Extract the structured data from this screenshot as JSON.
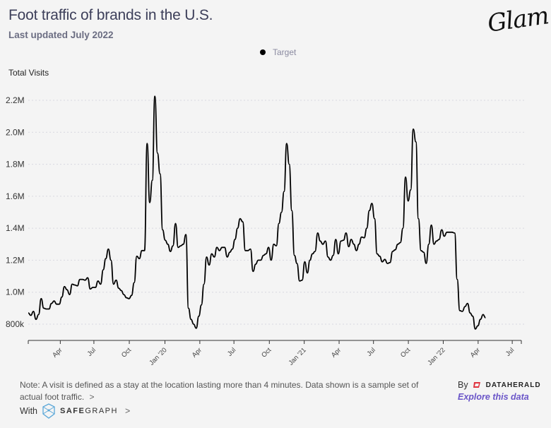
{
  "header": {
    "title": "Foot traffic of brands in the U.S.",
    "subtitle": "Last updated July 2022",
    "logo": "Glam"
  },
  "legend": [
    {
      "label": "Target",
      "color": "#000000"
    }
  ],
  "footer": {
    "note": "Note: A visit is defined as a stay at the location lasting more than 4 minutes. Data shown is a sample set of actual foot traffic.",
    "note_chevron": ">",
    "with_label": "With",
    "safegraph_bold": "SAFE",
    "safegraph_rest": "GRAPH",
    "safegraph_chevron": ">",
    "by_label": "By",
    "dataherald": "DATAHERALD",
    "explore_link": "Explore this data"
  },
  "chart_data": {
    "type": "line",
    "title": "Foot traffic of brands in the U.S.",
    "subtitle": "Last updated July 2022",
    "xlabel": "",
    "ylabel": "Total Visits",
    "ylim": [
      700000,
      2250000
    ],
    "y_ticks": [
      800000,
      1000000,
      1200000,
      1400000,
      1600000,
      1800000,
      2000000,
      2200000
    ],
    "y_tick_labels": [
      "800k",
      "1.0M",
      "1.2M",
      "1.4M",
      "1.6M",
      "1.8M",
      "2.0M",
      "2.2M"
    ],
    "x_start_week": 0,
    "x_ticks_week": [
      12.4,
      25.4,
      39.1,
      52.9,
      66.4,
      79.6,
      93.3,
      106.8,
      120.3,
      133.6,
      147.1,
      160.6,
      174.1,
      187.3
    ],
    "x_tick_labels": [
      "Apr",
      "Jul",
      "Oct",
      "Jan '20",
      "Apr",
      "Jul",
      "Oct",
      "Jan '21",
      "Apr",
      "Jul",
      "Oct",
      "Jan '22",
      "Apr",
      "Jul"
    ],
    "grid": true,
    "legend_position": "top-center",
    "series": [
      {
        "name": "Target",
        "color": "#000000",
        "values": [
          870000,
          855000,
          880000,
          830000,
          860000,
          960000,
          900000,
          895000,
          895000,
          930000,
          945000,
          925000,
          925000,
          970000,
          1035000,
          1015000,
          985000,
          1050000,
          1045000,
          1040000,
          1080000,
          1080000,
          1075000,
          1090000,
          1020000,
          1030000,
          1030000,
          1070000,
          1050000,
          1140000,
          1210000,
          1270000,
          1200000,
          1050000,
          1075000,
          1025000,
          1010000,
          985000,
          965000,
          960000,
          980000,
          1060000,
          1225000,
          1210000,
          1260000,
          1260000,
          1930000,
          1560000,
          1700000,
          2225000,
          1870000,
          1740000,
          1390000,
          1325000,
          1300000,
          1255000,
          1290000,
          1430000,
          1280000,
          1290000,
          1300000,
          1360000,
          900000,
          830000,
          800000,
          775000,
          850000,
          920000,
          1050000,
          1220000,
          1170000,
          1240000,
          1220000,
          1280000,
          1260000,
          1280000,
          1280000,
          1220000,
          1250000,
          1270000,
          1330000,
          1400000,
          1460000,
          1440000,
          1260000,
          1260000,
          1270000,
          1130000,
          1175000,
          1200000,
          1200000,
          1230000,
          1240000,
          1280000,
          1200000,
          1300000,
          1290000,
          1430000,
          1500000,
          1630000,
          1930000,
          1800000,
          1510000,
          1230000,
          1180000,
          1070000,
          1075000,
          1190000,
          1120000,
          1200000,
          1240000,
          1255000,
          1370000,
          1320000,
          1300000,
          1320000,
          1220000,
          1200000,
          1230000,
          1330000,
          1240000,
          1320000,
          1325000,
          1370000,
          1285000,
          1330000,
          1300000,
          1260000,
          1300000,
          1345000,
          1340000,
          1400000,
          1510000,
          1555000,
          1460000,
          1240000,
          1225000,
          1190000,
          1205000,
          1180000,
          1185000,
          1255000,
          1265000,
          1300000,
          1310000,
          1400000,
          1720000,
          1570000,
          1640000,
          2020000,
          1940000,
          1460000,
          1260000,
          1250000,
          1180000,
          1300000,
          1420000,
          1300000,
          1320000,
          1330000,
          1390000,
          1350000,
          1375000,
          1375000,
          1375000,
          1370000,
          1080000,
          885000,
          880000,
          910000,
          930000,
          870000,
          850000,
          770000,
          790000,
          830000,
          860000,
          840000
        ]
      }
    ]
  }
}
